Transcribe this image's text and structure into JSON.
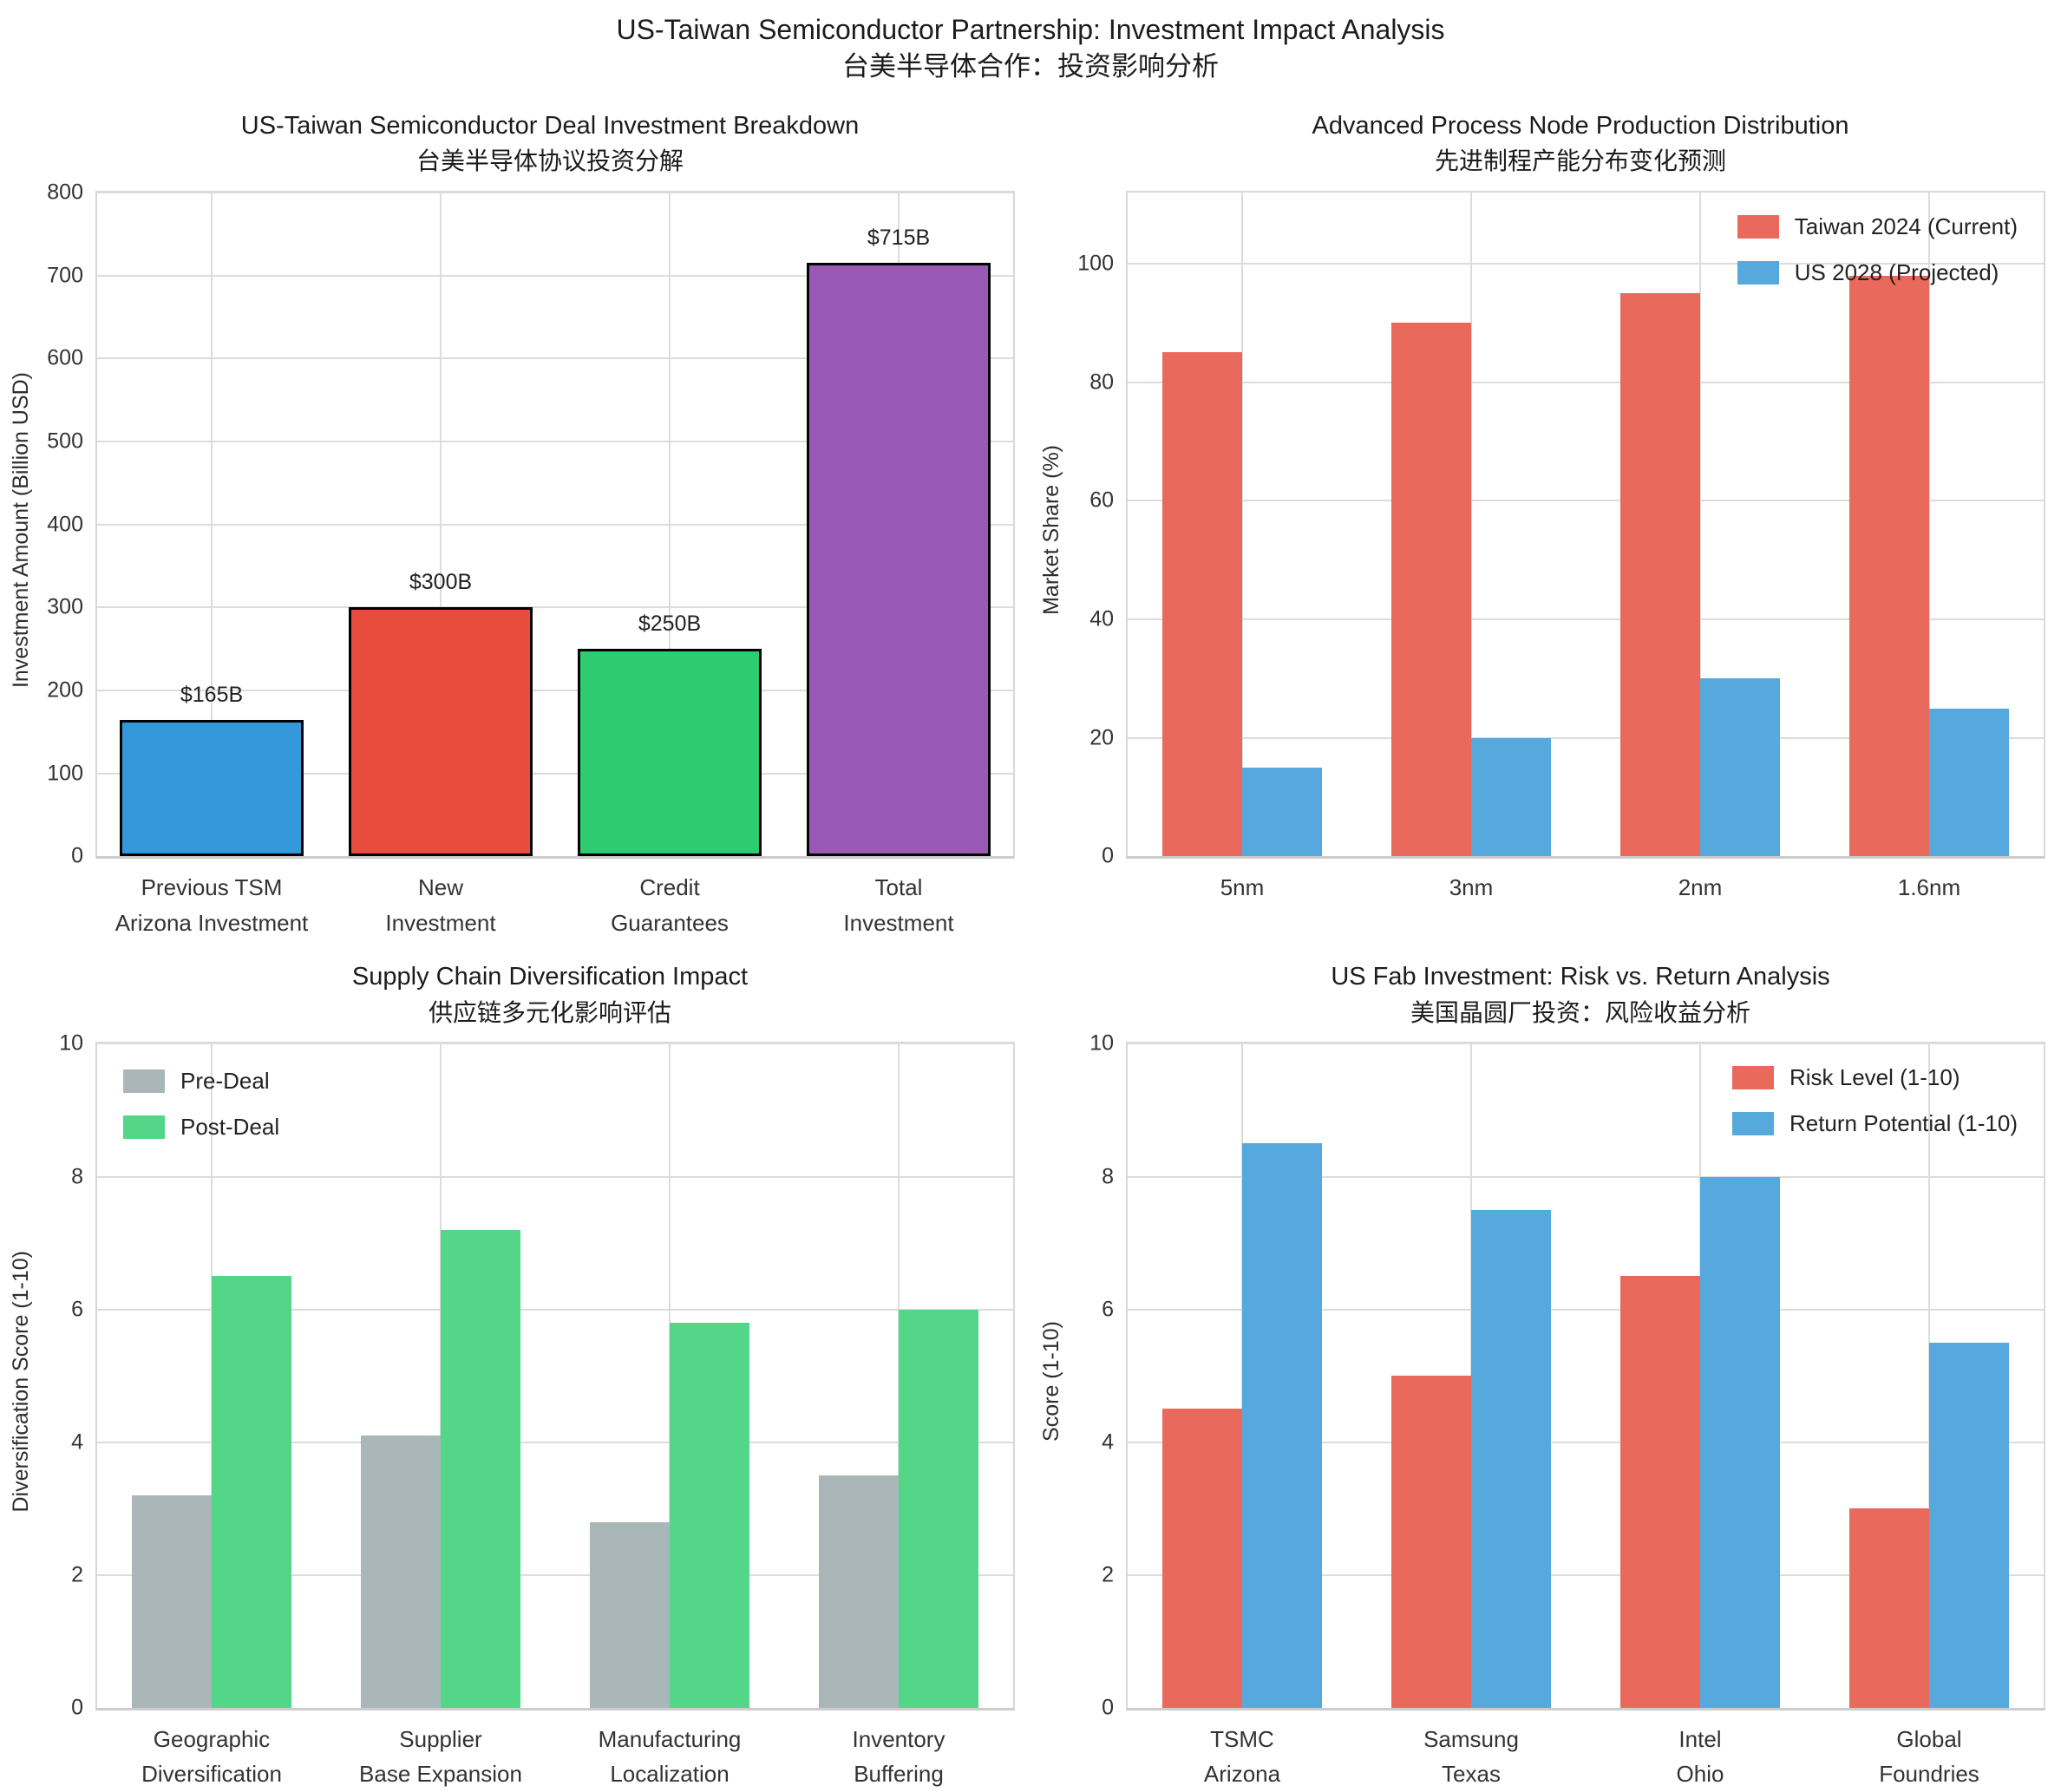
{
  "header": {
    "title": "US-Taiwan Semiconductor Partnership: Investment Impact Analysis",
    "subtitle_zh": "台美半导体合作：投资影响分析"
  },
  "chart_data": [
    {
      "type": "bar",
      "title": "US-Taiwan Semiconductor Deal Investment Breakdown",
      "title_zh": "台美半导体协议投资分解",
      "ylabel": "Investment Amount (Billion USD)",
      "ylim": [
        0,
        800
      ],
      "yticks": [
        0,
        100,
        200,
        300,
        400,
        500,
        600,
        700,
        800
      ],
      "grid": "both",
      "categories": [
        [
          "Previous TSM",
          "Arizona Investment"
        ],
        [
          "New",
          "Investment"
        ],
        [
          "Credit",
          "Guarantees"
        ],
        [
          "Total",
          "Investment"
        ]
      ],
      "values": [
        165,
        300,
        250,
        715
      ],
      "bar_labels": [
        "$165B",
        "$300B",
        "$250B",
        "$715B"
      ],
      "bar_colors": [
        "#3498db",
        "#e74c3c",
        "#2ecc71",
        "#9b59b6"
      ],
      "bar_edge_color": "#000000",
      "bar_width": 0.8
    },
    {
      "type": "bar",
      "title": "Advanced Process Node Production Distribution",
      "title_zh": "先进制程产能分布变化预测",
      "ylabel": "Market Share (%)",
      "ylim": [
        0,
        112
      ],
      "yticks": [
        0,
        20,
        40,
        60,
        80,
        100
      ],
      "grid": "both",
      "categories": [
        [
          "5nm"
        ],
        [
          "3nm"
        ],
        [
          "2nm"
        ],
        [
          "1.6nm"
        ]
      ],
      "series": [
        {
          "name": "Taiwan 2024 (Current)",
          "color": "#ea695d",
          "values": [
            85,
            90,
            95,
            98
          ]
        },
        {
          "name": "US 2028 (Projected)",
          "color": "#56a9dd",
          "values": [
            15,
            20,
            30,
            25
          ]
        }
      ],
      "group_width": 0.7,
      "legend_position": "upper-right"
    },
    {
      "type": "bar",
      "title": "Supply Chain Diversification Impact",
      "title_zh": "供应链多元化影响评估",
      "ylabel": "Diversification Score (1-10)",
      "ylim": [
        0,
        10
      ],
      "yticks": [
        0,
        2,
        4,
        6,
        8,
        10
      ],
      "grid": "both",
      "categories": [
        [
          "Geographic",
          "Diversification"
        ],
        [
          "Supplier",
          "Base Expansion"
        ],
        [
          "Manufacturing",
          "Localization"
        ],
        [
          "Inventory",
          "Buffering"
        ]
      ],
      "series": [
        {
          "name": "Pre-Deal",
          "color": "#a9b7b9",
          "values": [
            3.2,
            4.1,
            2.8,
            3.5
          ]
        },
        {
          "name": "Post-Deal",
          "color": "#53d688",
          "values": [
            6.5,
            7.2,
            5.8,
            6.0
          ]
        }
      ],
      "group_width": 0.7,
      "legend_position": "upper-left"
    },
    {
      "type": "bar",
      "title": "US Fab Investment: Risk vs. Return Analysis",
      "title_zh": "美国晶圆厂投资：风险收益分析",
      "ylabel": "Score (1-10)",
      "ylim": [
        0,
        10
      ],
      "yticks": [
        0,
        2,
        4,
        6,
        8,
        10
      ],
      "grid": "both",
      "categories": [
        [
          "TSMC",
          "Arizona"
        ],
        [
          "Samsung",
          "Texas"
        ],
        [
          "Intel",
          "Ohio"
        ],
        [
          "Global",
          "Foundries"
        ]
      ],
      "series": [
        {
          "name": "Risk Level (1-10)",
          "color": "#ea695d",
          "values": [
            4.5,
            5.0,
            6.5,
            3.0
          ]
        },
        {
          "name": "Return Potential (1-10)",
          "color": "#56a9dd",
          "values": [
            8.5,
            7.5,
            8.0,
            5.5
          ]
        }
      ],
      "group_width": 0.7,
      "legend_position": "upper-right"
    }
  ]
}
